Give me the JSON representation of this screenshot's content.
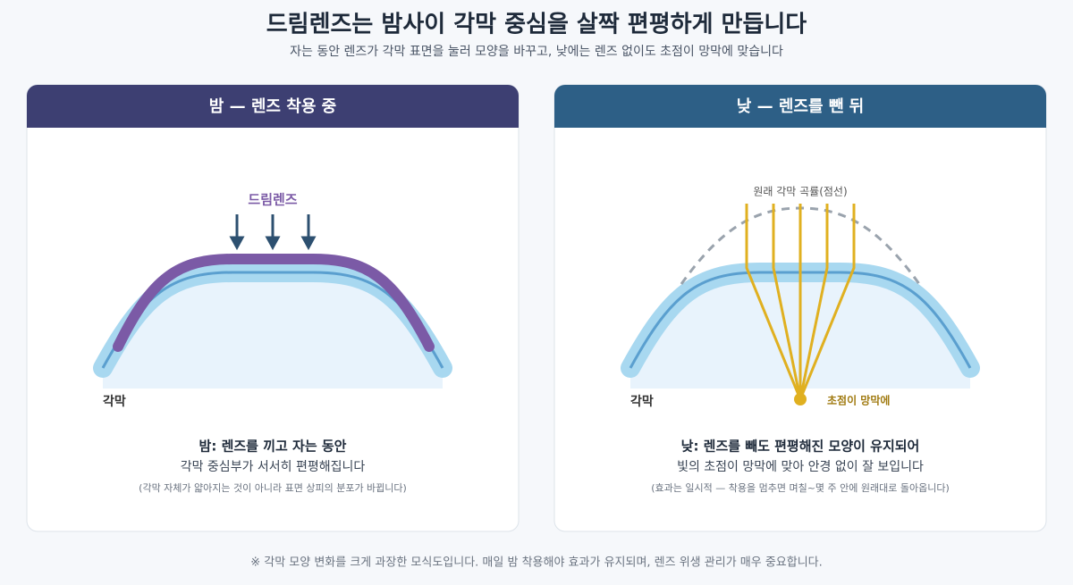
{
  "header": {
    "title": "드림렌즈는 밤사이 각막 중심을 살짝 편평하게 만듭니다",
    "subtitle": "자는 동안 렌즈가 각막 표면을 눌러 모양을 바꾸고, 낮에는 렌즈 없이도 초점이 망막에 맞습니다"
  },
  "panels": [
    {
      "title": "밤 — 렌즈 착용 중",
      "lens_label": "드림렌즈",
      "cornea_label": "각막",
      "caption": {
        "heading": "밤: 렌즈를 끼고 자는 동안",
        "text": "각막 중심부가 서서히 편평해집니다",
        "note": "(각막 자체가 얇아지는 것이 아니라 표면 상피의 분포가 바뀝니다)"
      }
    },
    {
      "title": "낮 — 렌즈를 뺀 뒤",
      "original_label": "원래 각막 곡률(점선)",
      "cornea_label": "각막",
      "focus_label": "초점이 망막에",
      "caption": {
        "heading": "낮: 렌즈를 빼도 편평해진 모양이 유지되어",
        "text": "빛의 초점이 망막에 맞아 안경 없이 잘 보입니다",
        "note": "(효과는 일시적 — 착용을 멈추면 며칠~몇 주 안에 원래대로 돌아옵니다)"
      }
    }
  ],
  "footer": "※ 각막 모양 변화를 크게 과장한 모식도입니다. 매일 밤 착용해야 효과가 유지되며, 렌즈 위생 관리가 매우 중요합니다."
}
